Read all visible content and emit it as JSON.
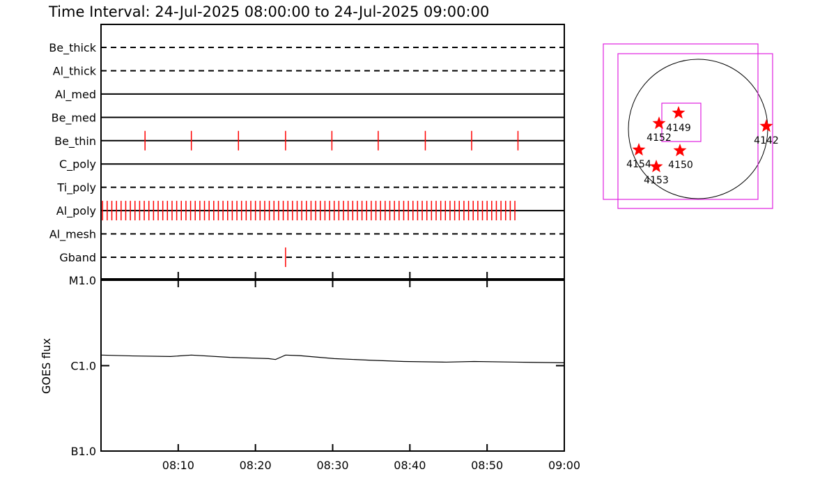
{
  "title": "Time Interval: 24-Jul-2025 08:00:00 to 24-Jul-2025 09:00:00",
  "chart_data": [
    {
      "type": "timeline",
      "categories": [
        "Be_thick",
        "Al_thick",
        "Al_med",
        "Be_med",
        "Be_thin",
        "C_poly",
        "Ti_poly",
        "Al_poly",
        "Al_mesh",
        "Gband"
      ],
      "linestyles": [
        "dashed",
        "dashed",
        "solid",
        "solid",
        "solid",
        "solid",
        "dashed",
        "solid",
        "dashed",
        "dashed"
      ],
      "color": "#ff0000",
      "exposures": [
        [],
        [],
        [],
        [],
        [
          5.7,
          11.7,
          17.8,
          23.9,
          29.9,
          35.9,
          42.0,
          48.0,
          54.0
        ],
        [],
        [],
        [
          0.2,
          0.8,
          1.4,
          2,
          2.6,
          3.2,
          3.8,
          4.4,
          5,
          5.6,
          6.2,
          6.8,
          7.4,
          8,
          8.6,
          9.2,
          9.8,
          10.4,
          11,
          11.6,
          12.2,
          12.8,
          13.4,
          14,
          14.6,
          15.2,
          15.8,
          16.4,
          17,
          17.6,
          18.2,
          18.8,
          19.4,
          20,
          20.6,
          21.2,
          21.8,
          22.4,
          23,
          23.6,
          24.2,
          24.8,
          25.4,
          26,
          26.6,
          27.2,
          27.8,
          28.4,
          29,
          29.6,
          30.2,
          30.8,
          31.4,
          32,
          32.6,
          33.2,
          33.8,
          34.4,
          35,
          35.6,
          36.2,
          36.8,
          37.4,
          38,
          38.6,
          39.2,
          39.8,
          40.4,
          41,
          41.6,
          42.2,
          42.8,
          43.4,
          44,
          44.6,
          45.2,
          45.8,
          46.4,
          47,
          47.6,
          48.2,
          48.8,
          49.4,
          50,
          50.6,
          51.2,
          51.8,
          52.4,
          53,
          53.6
        ],
        [],
        [
          23.9
        ]
      ],
      "xlim": [
        0,
        60
      ]
    },
    {
      "type": "line",
      "ylabel": "GOES flux",
      "x": [
        0,
        4.1,
        9.0,
        11.7,
        16.7,
        21.7,
        22.6,
        23.9,
        25.7,
        30.2,
        34.7,
        39.2,
        44.7,
        48.3,
        53.7,
        60
      ],
      "series": [
        {
          "color": "#000000",
          "values": [
            1.33e-06,
            1.3e-06,
            1.28e-06,
            1.33e-06,
            1.25e-06,
            1.21e-06,
            1.18e-06,
            1.33e-06,
            1.31e-06,
            1.21e-06,
            1.16e-06,
            1.12e-06,
            1.1e-06,
            1.12e-06,
            1.1e-06,
            1.08e-06
          ]
        }
      ],
      "xlim": [
        0,
        60
      ],
      "xticks": [
        {
          "value": 10,
          "label": "08:10"
        },
        {
          "value": 20,
          "label": "08:20"
        },
        {
          "value": 30,
          "label": "08:30"
        },
        {
          "value": 40,
          "label": "08:40"
        },
        {
          "value": 50,
          "label": "08:50"
        },
        {
          "value": 60,
          "label": "09:00"
        }
      ],
      "ylim": [
        1e-07,
        1e-05
      ],
      "yticks": [
        {
          "value": 1e-05,
          "label": "M1.0"
        },
        {
          "value": 1e-06,
          "label": "C1.0"
        },
        {
          "value": 1e-07,
          "label": "B1.0"
        }
      ],
      "log_y": true
    }
  ],
  "map": {
    "regions": [
      "4149",
      "4152",
      "4142",
      "4154",
      "4150",
      "4153"
    ],
    "color": "#ff0000",
    "box_color": "#e020e0"
  }
}
